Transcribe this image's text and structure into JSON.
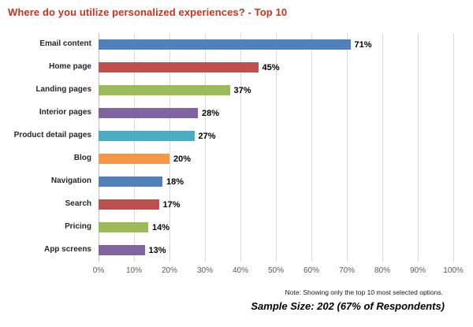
{
  "chart_data": {
    "type": "bar",
    "orientation": "horizontal",
    "title": "Where do you utilize personalized experiences? - Top 10",
    "categories": [
      "Email content",
      "Home page",
      "Landing pages",
      "Interior pages",
      "Product detail pages",
      "Blog",
      "Navigation",
      "Search",
      "Pricing",
      "App screens"
    ],
    "values": [
      71,
      45,
      37,
      28,
      27,
      20,
      18,
      17,
      14,
      13
    ],
    "value_labels": [
      "71%",
      "45%",
      "37%",
      "28%",
      "27%",
      "20%",
      "18%",
      "17%",
      "14%",
      "13%"
    ],
    "xlabel": "",
    "ylabel": "",
    "xlim": [
      0,
      100
    ],
    "x_ticks": [
      "0%",
      "10%",
      "20%",
      "30%",
      "40%",
      "50%",
      "60%",
      "70%",
      "80%",
      "90%",
      "100%"
    ],
    "grid": true,
    "legend": "none",
    "colors": [
      "#4F81BD",
      "#C0504D",
      "#9BBB59",
      "#8064A2",
      "#4BACC6",
      "#F79646",
      "#4F81BD",
      "#C0504D",
      "#9BBB59",
      "#8064A2"
    ],
    "title_color": "#C8341B",
    "gridline_color": "#D9D9D9",
    "note": "Note: Showing only the top 10 most selected options.",
    "sample_size": "Sample Size: 202 (67% of Respondents)"
  }
}
